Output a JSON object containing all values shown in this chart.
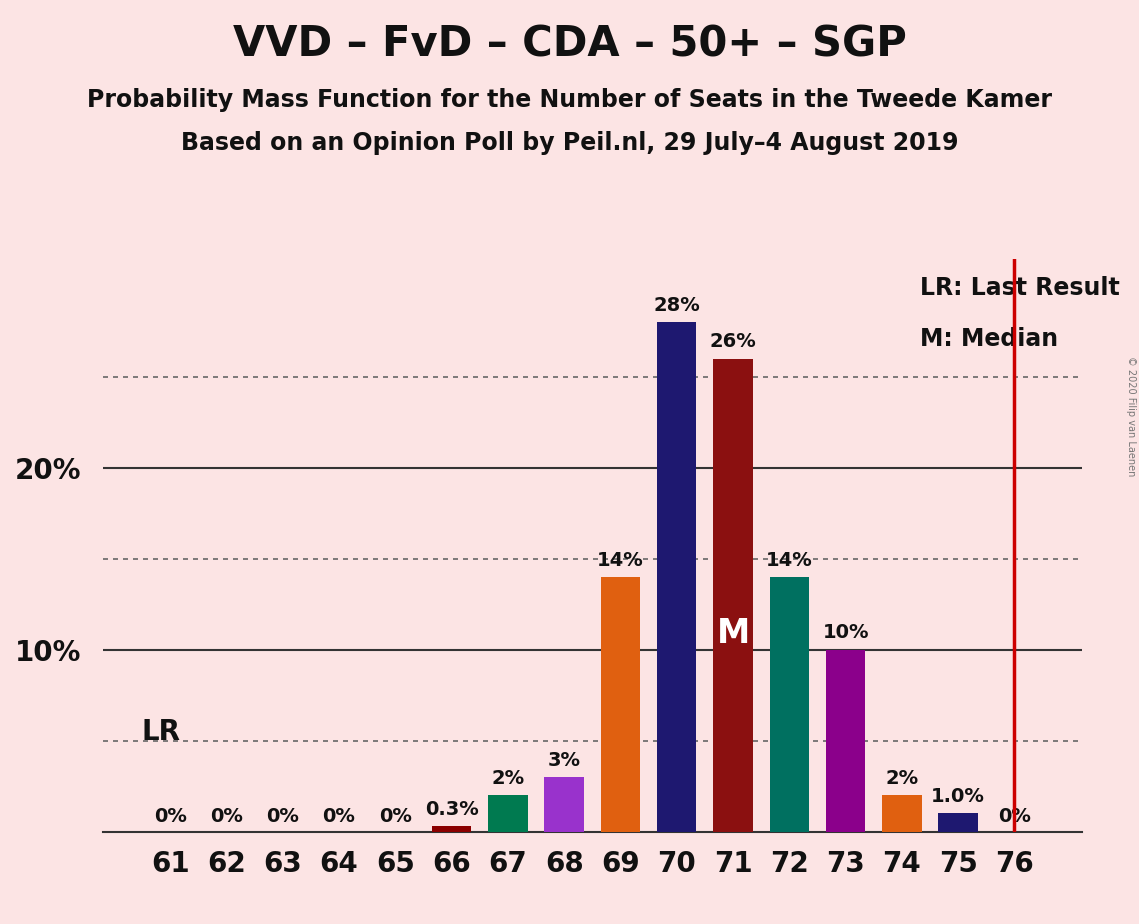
{
  "title": "VVD – FvD – CDA – 50+ – SGP",
  "subtitle1": "Probability Mass Function for the Number of Seats in the Tweede Kamer",
  "subtitle2": "Based on an Opinion Poll by Peil.nl, 29 July–4 August 2019",
  "copyright": "© 2020 Filip van Laenen",
  "background_color": "#fce4e4",
  "seats": [
    61,
    62,
    63,
    64,
    65,
    66,
    67,
    68,
    69,
    70,
    71,
    72,
    73,
    74,
    75,
    76
  ],
  "probabilities": [
    0.0,
    0.0,
    0.0,
    0.0,
    0.0,
    0.003,
    0.02,
    0.03,
    0.14,
    0.28,
    0.26,
    0.14,
    0.1,
    0.02,
    0.01,
    0.0
  ],
  "bar_colors": [
    "#fce4e4",
    "#fce4e4",
    "#fce4e4",
    "#fce4e4",
    "#fce4e4",
    "#8b0000",
    "#007a50",
    "#9932cc",
    "#e06010",
    "#1e1870",
    "#8b1010",
    "#007060",
    "#8b008b",
    "#e06010",
    "#1e1870",
    "#fce4e4"
  ],
  "labels": [
    "0%",
    "0%",
    "0%",
    "0%",
    "0%",
    "0.3%",
    "2%",
    "3%",
    "14%",
    "28%",
    "26%",
    "14%",
    "10%",
    "2%",
    "1.0%",
    "0%"
  ],
  "lr_seat": 76,
  "median_seat": 71,
  "median_label": "M",
  "lr_line_color": "#cc0000",
  "ylim_max": 0.315,
  "title_fontsize": 30,
  "subtitle_fontsize": 17,
  "label_fontsize": 14,
  "tick_fontsize": 20,
  "legend_fontsize": 17,
  "median_fontsize": 24,
  "lr_label_fontsize": 20
}
